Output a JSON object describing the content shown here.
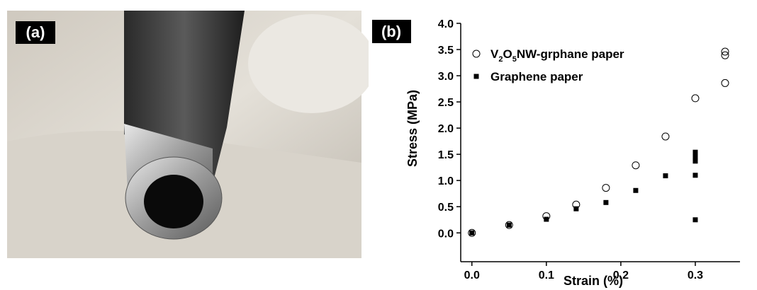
{
  "photo": {
    "label": "(a)"
  },
  "chart_data": {
    "type": "scatter",
    "panel_label": "(b)",
    "xlabel": "Strain (%)",
    "ylabel": "Stress (MPa)",
    "xlim": [
      -0.015,
      0.36
    ],
    "ylim": [
      -0.55,
      4.0
    ],
    "xticks": [
      {
        "value": 0,
        "label": "0.0"
      },
      0.1,
      0.2,
      0.3
    ],
    "yticks": [
      {
        "value": 0,
        "label": "0.0"
      },
      0.5,
      {
        "value": 1,
        "label": "1.0"
      },
      1.5,
      {
        "value": 2,
        "label": "2.0"
      },
      2.5,
      {
        "value": 3,
        "label": "3.0"
      },
      3.5,
      {
        "value": 4,
        "label": "4.0"
      }
    ],
    "series": [
      {
        "name": "V2O5NW-grphane paper",
        "marker": "open-circle",
        "color": "#000000",
        "x": [
          0,
          0.05,
          0.1,
          0.14,
          0.18,
          0.22,
          0.26,
          0.3,
          0.34,
          0.34,
          0.34
        ],
        "values": [
          0,
          0.15,
          0.32,
          0.54,
          0.86,
          1.29,
          1.84,
          2.57,
          2.86,
          3.39,
          3.46
        ]
      },
      {
        "name": "Graphene paper",
        "marker": "square",
        "color": "#000000",
        "x": [
          0,
          0.05,
          0.1,
          0.14,
          0.18,
          0.22,
          0.26,
          0.3,
          0.3,
          0.3,
          0.3,
          0.3
        ],
        "values": [
          0,
          0.15,
          0.26,
          0.46,
          0.58,
          0.81,
          1.09,
          1.1,
          0.25,
          1.37,
          1.45,
          1.54
        ]
      }
    ]
  }
}
